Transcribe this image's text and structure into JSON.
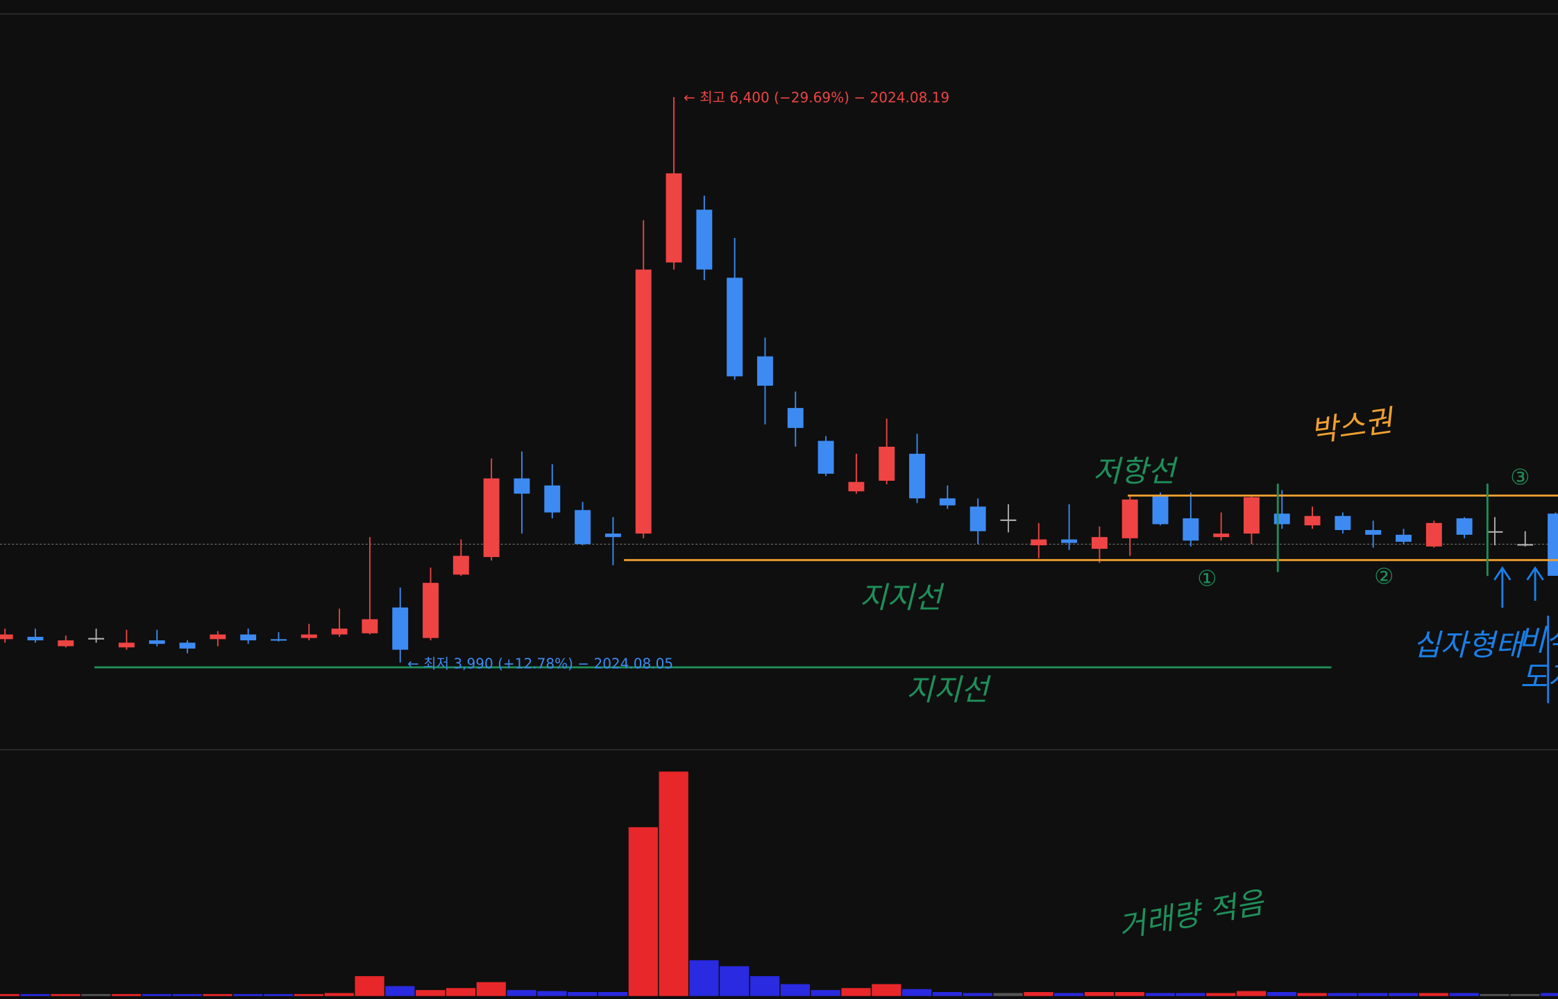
{
  "chart_data": {
    "type": "candlestick",
    "open": [
      4090,
      4100,
      4060,
      4095,
      4055,
      4085,
      4075,
      4090,
      4110,
      4090,
      4095,
      4110,
      4115,
      4225,
      4095,
      4365,
      4440,
      4775,
      4745,
      4640,
      4540,
      4540,
      5695,
      5920,
      5630,
      5295,
      5075,
      4935,
      4720,
      4765,
      4880,
      4690,
      4655,
      4600,
      4490,
      4515,
      4475,
      4520,
      4700,
      4605,
      4525,
      4540,
      4625,
      4575,
      4615,
      4555,
      4535,
      4485,
      4605,
      4550,
      4495,
      4625
    ],
    "high": [
      4135,
      4135,
      4105,
      4135,
      4130,
      4130,
      4085,
      4125,
      4135,
      4120,
      4155,
      4220,
      4525,
      4310,
      4395,
      4515,
      4860,
      4890,
      4835,
      4675,
      4610,
      5875,
      6400,
      5980,
      5800,
      5375,
      5145,
      4955,
      4880,
      5030,
      4965,
      4745,
      4690,
      4665,
      4585,
      4665,
      4570,
      4700,
      4715,
      4715,
      4630,
      4700,
      4725,
      4655,
      4630,
      4595,
      4560,
      4595,
      4610,
      4610,
      4550,
      4630
    ],
    "low": [
      4075,
      4075,
      4055,
      4075,
      4045,
      4060,
      4030,
      4060,
      4070,
      4080,
      4085,
      4100,
      4110,
      3990,
      4085,
      4360,
      4425,
      4540,
      4605,
      4490,
      4405,
      4520,
      5665,
      5620,
      5195,
      5005,
      4910,
      4785,
      4710,
      4750,
      4670,
      4645,
      4495,
      4545,
      4435,
      4470,
      4415,
      4445,
      4575,
      4485,
      4510,
      4495,
      4560,
      4560,
      4540,
      4480,
      4495,
      4480,
      4520,
      4490,
      4485,
      4360
    ],
    "close": [
      4110,
      4085,
      4085,
      4095,
      4075,
      4070,
      4050,
      4110,
      4085,
      4085,
      4110,
      4135,
      4175,
      4045,
      4330,
      4445,
      4775,
      4710,
      4630,
      4495,
      4525,
      5665,
      6075,
      5665,
      5210,
      5170,
      4990,
      4795,
      4760,
      4910,
      4690,
      4660,
      4550,
      4600,
      4515,
      4500,
      4525,
      4685,
      4580,
      4510,
      4540,
      4695,
      4580,
      4615,
      4555,
      4535,
      4505,
      4585,
      4535,
      4550,
      4495,
      4360
    ],
    "up_color": "#ef4444",
    "down_color": "#3d8bf2",
    "flat_color": "#b0b0b0",
    "ylim": [
      3640,
      6750
    ],
    "high_label": "← 최고 6,400 (−29.69%) − 2024.08.19",
    "low_label": "← 최저 3,990 (+12.78%) − 2024.08.05",
    "volume": {
      "type": "bar",
      "values": [
        2,
        2,
        2,
        2,
        2,
        2,
        2,
        2,
        2,
        2,
        2,
        3,
        20,
        10,
        6,
        8,
        14,
        6,
        5,
        4,
        4,
        170,
        226,
        36,
        30,
        20,
        12,
        6,
        8,
        12,
        7,
        4,
        3,
        3,
        4,
        3,
        4,
        4,
        3,
        3,
        3,
        5,
        4,
        3,
        3,
        3,
        3,
        3,
        3,
        2,
        2,
        3
      ],
      "ylim": [
        0,
        247
      ],
      "up_color": "#e8272a",
      "down_color": "#2a2ae0",
      "flat_color": "#555555"
    }
  },
  "annotations": [
    "박스권",
    "저항선",
    "지지선",
    "지지선",
    "①",
    "②",
    "③",
    "십자형태",
    "비석",
    "도지",
    "거래량 적음"
  ]
}
